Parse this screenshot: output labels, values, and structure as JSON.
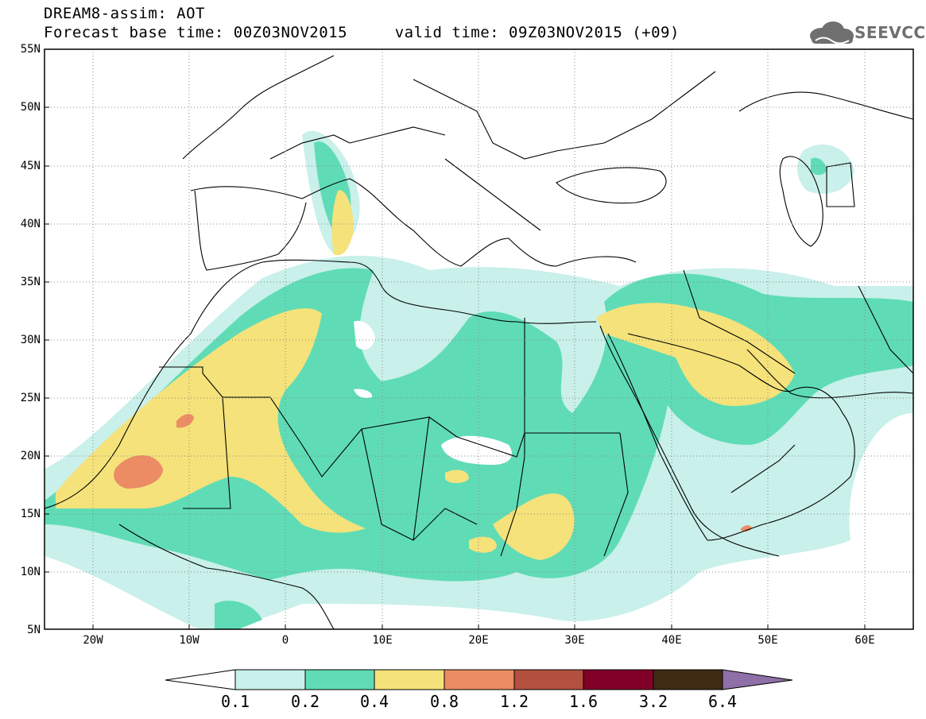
{
  "title": {
    "line1": "DREAM8-assim: AOT",
    "line2": "Forecast base time: 00Z03NOV2015     valid time: 09Z03NOV2015 (+09)"
  },
  "logo": {
    "text": "SEEVCCC",
    "icon": "cloud-icon",
    "color": "#6f6f6f"
  },
  "map": {
    "lat_labels": [
      "55N",
      "50N",
      "45N",
      "40N",
      "35N",
      "30N",
      "25N",
      "20N",
      "15N",
      "10N",
      "5N"
    ],
    "lon_labels": [
      "20W",
      "10W",
      "0",
      "10E",
      "20E",
      "30E",
      "40E",
      "50E",
      "60E"
    ],
    "lat_range": [
      5,
      55
    ],
    "lon_range": [
      -25,
      65
    ],
    "grid": "dotted"
  },
  "colorbar": {
    "labels": [
      "0.1",
      "0.2",
      "0.4",
      "0.8",
      "1.2",
      "1.6",
      "3.2",
      "6.4"
    ],
    "colors": [
      "#ffffff",
      "#c9f0ea",
      "#5fdcb6",
      "#f5e27a",
      "#eb8c65",
      "#b3503f",
      "#800027",
      "#3f2a14",
      "#8e6fa8"
    ]
  }
}
